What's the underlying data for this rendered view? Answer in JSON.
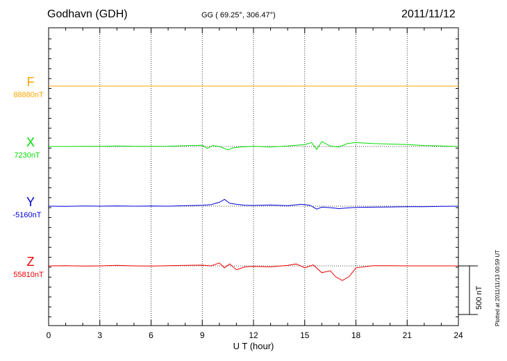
{
  "header": {
    "station": "Godhavn (GDH)",
    "coords": "GG ( 69.25°, 306.47°)",
    "date": "2011/11/12"
  },
  "plotted_note": "Plotted at 2011/11/13 00:59 UT",
  "scale_label": "500 nT",
  "chart_data": {
    "type": "line",
    "xlabel": "U T (hour)",
    "xlim": [
      0,
      24
    ],
    "xticks": [
      0,
      3,
      6,
      9,
      12,
      15,
      18,
      21,
      24
    ],
    "scale_bar_nT": 500,
    "grid": "dotted vertical every 3 hours",
    "series": [
      {
        "name": "F",
        "baseline_label": "88880nT",
        "color": "#ffa500",
        "x": [
          0,
          3,
          6,
          9,
          12,
          15,
          18,
          21,
          24
        ],
        "y": [
          88880,
          88880,
          88880,
          88880,
          88880,
          88880,
          88880,
          88880,
          88880
        ]
      },
      {
        "name": "X",
        "baseline_label": "7230nT",
        "color": "#00dd00",
        "x": [
          0,
          1,
          2,
          3,
          4,
          5,
          6,
          7,
          8,
          9,
          9.3,
          9.6,
          10,
          10.5,
          10.8,
          11.2,
          12,
          13,
          14,
          15,
          15.4,
          15.7,
          16,
          16.5,
          17,
          17.5,
          18,
          19,
          20,
          21,
          22,
          23,
          24
        ],
        "y": [
          7230,
          7230,
          7232,
          7232,
          7235,
          7232,
          7232,
          7233,
          7238,
          7242,
          7210,
          7240,
          7230,
          7195,
          7215,
          7225,
          7232,
          7225,
          7235,
          7250,
          7270,
          7200,
          7280,
          7235,
          7225,
          7260,
          7270,
          7260,
          7255,
          7250,
          7240,
          7235,
          7230
        ]
      },
      {
        "name": "Y",
        "baseline_label": "-5160nT",
        "color": "#0000dd",
        "x": [
          0,
          1,
          2,
          3,
          4,
          5,
          6,
          7,
          8,
          9,
          9.5,
          10,
          10.3,
          10.6,
          11,
          11.5,
          12,
          13,
          14,
          14.8,
          15.3,
          15.7,
          16,
          16.5,
          17,
          17.5,
          18,
          19,
          20,
          21,
          22,
          23,
          24
        ],
        "y": [
          -5160,
          -5162,
          -5158,
          -5160,
          -5157,
          -5160,
          -5158,
          -5160,
          -5155,
          -5150,
          -5145,
          -5120,
          -5090,
          -5130,
          -5140,
          -5150,
          -5152,
          -5148,
          -5155,
          -5140,
          -5150,
          -5190,
          -5170,
          -5175,
          -5185,
          -5178,
          -5172,
          -5170,
          -5168,
          -5165,
          -5165,
          -5162,
          -5160
        ]
      },
      {
        "name": "Z",
        "baseline_label": "55810nT",
        "color": "#ee0000",
        "x": [
          0,
          1,
          2,
          3,
          4,
          5,
          6,
          7,
          8,
          9,
          9.5,
          10,
          10.3,
          10.6,
          11,
          11.5,
          12,
          13,
          14,
          14.5,
          15,
          15.5,
          16,
          16.5,
          16.8,
          17.2,
          17.6,
          18,
          19,
          20,
          21,
          22,
          23,
          24
        ],
        "y": [
          55810,
          55812,
          55808,
          55810,
          55815,
          55810,
          55808,
          55812,
          55815,
          55818,
          55810,
          55840,
          55790,
          55830,
          55770,
          55800,
          55805,
          55800,
          55815,
          55830,
          55790,
          55820,
          55740,
          55760,
          55700,
          55660,
          55700,
          55790,
          55812,
          55812,
          55810,
          55810,
          55810,
          55810
        ]
      }
    ]
  }
}
